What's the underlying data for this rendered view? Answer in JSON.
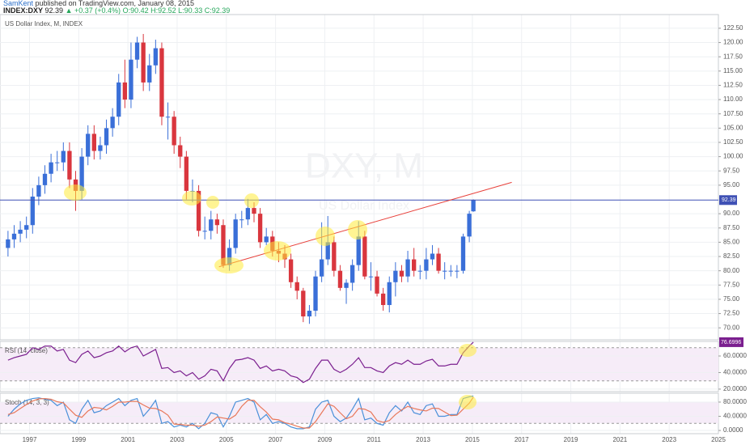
{
  "header": {
    "author": "SamKent",
    "published": "published on TradingView.com, January 08, 2015",
    "symbol": "INDEX:DXY",
    "last": "92.39",
    "arrow": "▲",
    "change": "+0.37 (+0.4%)",
    "open": "O:90.42",
    "high": "H:92.52",
    "low": "L:90.33",
    "close": "C:92.39"
  },
  "chart_data": [
    {
      "type": "candlestick",
      "title": "US Dollar Index, M, INDEX",
      "watermark": "DXY, M",
      "watermark_sub": "US Dollar Index",
      "up_color": "#3a6fd8",
      "down_color": "#d9363e",
      "price_line_color": "#3f51b5",
      "x": [
        1996.125,
        1996.375,
        1996.625,
        1996.875,
        1997.125,
        1997.375,
        1997.625,
        1997.875,
        1998.125,
        1998.375,
        1998.625,
        1998.875,
        1999.125,
        1999.375,
        1999.625,
        1999.875,
        2000.125,
        2000.375,
        2000.625,
        2000.875,
        2001.125,
        2001.375,
        2001.625,
        2001.875,
        2002.125,
        2002.375,
        2002.625,
        2002.875,
        2003.125,
        2003.375,
        2003.625,
        2003.875,
        2004.125,
        2004.375,
        2004.625,
        2004.875,
        2005.125,
        2005.375,
        2005.625,
        2005.875,
        2006.125,
        2006.375,
        2006.625,
        2006.875,
        2007.125,
        2007.375,
        2007.625,
        2007.875,
        2008.125,
        2008.375,
        2008.625,
        2008.875,
        2009.125,
        2009.375,
        2009.625,
        2009.875,
        2010.125,
        2010.375,
        2010.625,
        2010.875,
        2011.125,
        2011.375,
        2011.625,
        2011.875,
        2012.125,
        2012.375,
        2012.625,
        2012.875,
        2013.125,
        2013.375,
        2013.625,
        2013.875,
        2014.125,
        2014.375,
        2014.625,
        2014.875,
        2015.04
      ],
      "open": [
        84,
        85.5,
        86.5,
        87.2,
        88,
        93,
        95,
        97,
        99,
        99,
        101,
        96,
        94,
        100,
        104,
        101,
        102,
        105,
        107,
        113,
        110,
        117,
        120,
        113,
        116,
        119,
        107,
        107,
        102,
        100,
        94,
        94,
        87,
        87,
        89,
        88,
        81,
        84,
        89,
        89,
        91,
        90,
        85,
        86,
        83.5,
        83,
        82,
        78,
        76.5,
        72,
        73,
        79,
        82,
        85,
        80,
        77,
        77.9,
        81,
        86,
        79,
        79,
        76,
        74,
        78,
        80,
        79,
        82,
        80,
        80,
        82,
        83,
        80,
        80,
        80,
        80,
        86,
        90.42
      ],
      "high": [
        87,
        88,
        88.7,
        89.5,
        94.5,
        96.5,
        98.5,
        100.5,
        101,
        102.5,
        102.5,
        97.5,
        101.5,
        105.5,
        105.5,
        103.5,
        106.5,
        108.5,
        114.5,
        117,
        120,
        121,
        121.5,
        118,
        120.5,
        120,
        109.5,
        108,
        103.5,
        101,
        96,
        95,
        89.5,
        90.5,
        90,
        89,
        85.5,
        90,
        90.5,
        92.6,
        92,
        91,
        87.5,
        87,
        85,
        84.5,
        83,
        79,
        77,
        74,
        80,
        88.5,
        89.6,
        86,
        81,
        78.5,
        82,
        88.7,
        87,
        81.5,
        80,
        77,
        79,
        81.5,
        81,
        83.5,
        84,
        81,
        84,
        84.5,
        84,
        81.5,
        81,
        81,
        86.5,
        90.5,
        92.52
      ],
      "low": [
        82.5,
        84,
        85,
        85.7,
        86.5,
        91.5,
        93.5,
        95.5,
        97.5,
        97.5,
        94.5,
        90.5,
        92.5,
        98.5,
        99.5,
        99.5,
        100.5,
        103.5,
        105.5,
        108.5,
        108.5,
        115.5,
        111.5,
        111.5,
        114.5,
        105.5,
        103,
        100.5,
        98,
        92.5,
        92,
        86,
        85.5,
        85.5,
        86.5,
        80.5,
        80,
        83,
        87.5,
        88,
        88.5,
        84,
        84.5,
        82.5,
        81.5,
        80.5,
        77,
        75,
        71,
        70.7,
        72,
        78,
        81,
        79,
        76.5,
        74.2,
        76.5,
        80,
        78.5,
        76.5,
        75.5,
        73,
        72.7,
        75.5,
        78,
        78,
        79,
        78.5,
        78.5,
        81,
        79.5,
        78.5,
        79,
        78.7,
        79.5,
        85,
        90.33
      ],
      "close": [
        85.5,
        86.5,
        87.2,
        88,
        93,
        95,
        97,
        99,
        99,
        101,
        96,
        94,
        100,
        104,
        101,
        102,
        105,
        107,
        113,
        110,
        117,
        120,
        113,
        116,
        119,
        107,
        107,
        102,
        100,
        94,
        94,
        87,
        87,
        89,
        88,
        81,
        84,
        89,
        89,
        91,
        90,
        85,
        86,
        83.5,
        83,
        82,
        78,
        76.5,
        72,
        73,
        79,
        82,
        85,
        80,
        77,
        77.9,
        81,
        86,
        79,
        79,
        76,
        74,
        78,
        80,
        79,
        82,
        80,
        80,
        82,
        83,
        80,
        80,
        80,
        80,
        86,
        90,
        92.39
      ],
      "trendline": {
        "x": [
          2004.7,
          2016.6
        ],
        "y": [
          80.7,
          95.5
        ],
        "color": "#e8403a"
      },
      "xlim": [
        1995.8,
        2025.0
      ],
      "xticks": [
        1997,
        1999,
        2001,
        2003,
        2005,
        2007,
        2009,
        2011,
        2013,
        2015,
        2017,
        2019,
        2021,
        2023,
        2025
      ],
      "ylim": [
        67.9,
        124.9
      ],
      "yticks": [
        {
          "value": 70,
          "label": "70.00"
        },
        {
          "value": 72.5,
          "label": "72.50"
        },
        {
          "value": 75,
          "label": "75.00"
        },
        {
          "value": 77.5,
          "label": "77.50"
        },
        {
          "value": 80,
          "label": "80.00"
        },
        {
          "value": 82.5,
          "label": "82.50"
        },
        {
          "value": 85,
          "label": "85.00"
        },
        {
          "value": 87.5,
          "label": "87.50"
        },
        {
          "value": 90,
          "label": "90.00"
        },
        {
          "value": 95,
          "label": "95.00"
        },
        {
          "value": 97.5,
          "label": "97.50"
        },
        {
          "value": 100,
          "label": "100.00"
        },
        {
          "value": 102.5,
          "label": "102.50"
        },
        {
          "value": 105,
          "label": "105.00"
        },
        {
          "value": 107.5,
          "label": "107.50"
        },
        {
          "value": 110,
          "label": "110.00"
        },
        {
          "value": 112.5,
          "label": "112.50"
        },
        {
          "value": 115,
          "label": "115.00"
        },
        {
          "value": 117.5,
          "label": "117.50"
        },
        {
          "value": 120,
          "label": "120.00"
        },
        {
          "value": 122.5,
          "label": "122.50"
        }
      ],
      "grid": true
    },
    {
      "type": "line",
      "title": "RSI (14, close)",
      "bands": [
        30,
        70
      ],
      "band_fill": "#f6ecf8",
      "series": [
        {
          "color": "#7b1f8f",
          "values": [
            55,
            58,
            60,
            62,
            70,
            68,
            72,
            72,
            66,
            68,
            55,
            52,
            62,
            66,
            58,
            60,
            64,
            66,
            72,
            65,
            70,
            72,
            60,
            64,
            68,
            45,
            46,
            40,
            42,
            36,
            40,
            32,
            36,
            44,
            42,
            30,
            45,
            55,
            56,
            58,
            55,
            45,
            48,
            42,
            44,
            42,
            36,
            34,
            28,
            32,
            45,
            55,
            55,
            44,
            40,
            44,
            50,
            58,
            46,
            46,
            42,
            40,
            48,
            52,
            50,
            55,
            50,
            50,
            54,
            56,
            48,
            48,
            50,
            50,
            64,
            72,
            76.6996
          ]
        }
      ],
      "ylim": [
        17,
        77.6
      ],
      "yticks": [
        {
          "value": 20,
          "label": "20.0000"
        },
        {
          "value": 40,
          "label": "40.0000"
        },
        {
          "value": 60,
          "label": "60.0000"
        }
      ],
      "grid": true
    },
    {
      "type": "line",
      "title": "Stoch (14, 3, 3)",
      "bands": [
        20,
        80
      ],
      "band_fill": "#f6ecf8",
      "series": [
        {
          "color": "#4a90d9",
          "values": [
            40,
            60,
            75,
            85,
            90,
            92,
            88,
            85,
            70,
            80,
            30,
            20,
            60,
            85,
            50,
            55,
            70,
            80,
            90,
            70,
            85,
            90,
            40,
            60,
            85,
            20,
            25,
            10,
            15,
            10,
            20,
            5,
            20,
            50,
            45,
            10,
            40,
            80,
            85,
            90,
            80,
            30,
            45,
            20,
            25,
            20,
            10,
            5,
            5,
            10,
            60,
            80,
            85,
            40,
            25,
            35,
            60,
            90,
            30,
            35,
            20,
            15,
            50,
            70,
            55,
            80,
            50,
            45,
            70,
            75,
            40,
            40,
            45,
            45,
            90,
            95,
            97
          ]
        },
        {
          "color": "#e8785a",
          "values": [
            45,
            50,
            62,
            73,
            83,
            89,
            90,
            88,
            81,
            78,
            60,
            43,
            37,
            55,
            65,
            63,
            58,
            68,
            80,
            80,
            82,
            82,
            72,
            63,
            62,
            55,
            43,
            18,
            17,
            15,
            15,
            12,
            15,
            25,
            38,
            35,
            32,
            43,
            68,
            85,
            85,
            67,
            52,
            32,
            30,
            22,
            18,
            12,
            7,
            7,
            25,
            50,
            75,
            68,
            50,
            33,
            40,
            62,
            60,
            52,
            28,
            23,
            28,
            45,
            58,
            68,
            62,
            58,
            55,
            63,
            62,
            52,
            42,
            43,
            60,
            77,
            94
          ]
        }
      ],
      "ylim": [
        -9,
        105
      ],
      "yticks": [
        {
          "value": 0,
          "label": "0.0000"
        },
        {
          "value": 40,
          "label": "40.0000"
        },
        {
          "value": 80,
          "label": "80.0000"
        }
      ],
      "grid": true
    }
  ]
}
